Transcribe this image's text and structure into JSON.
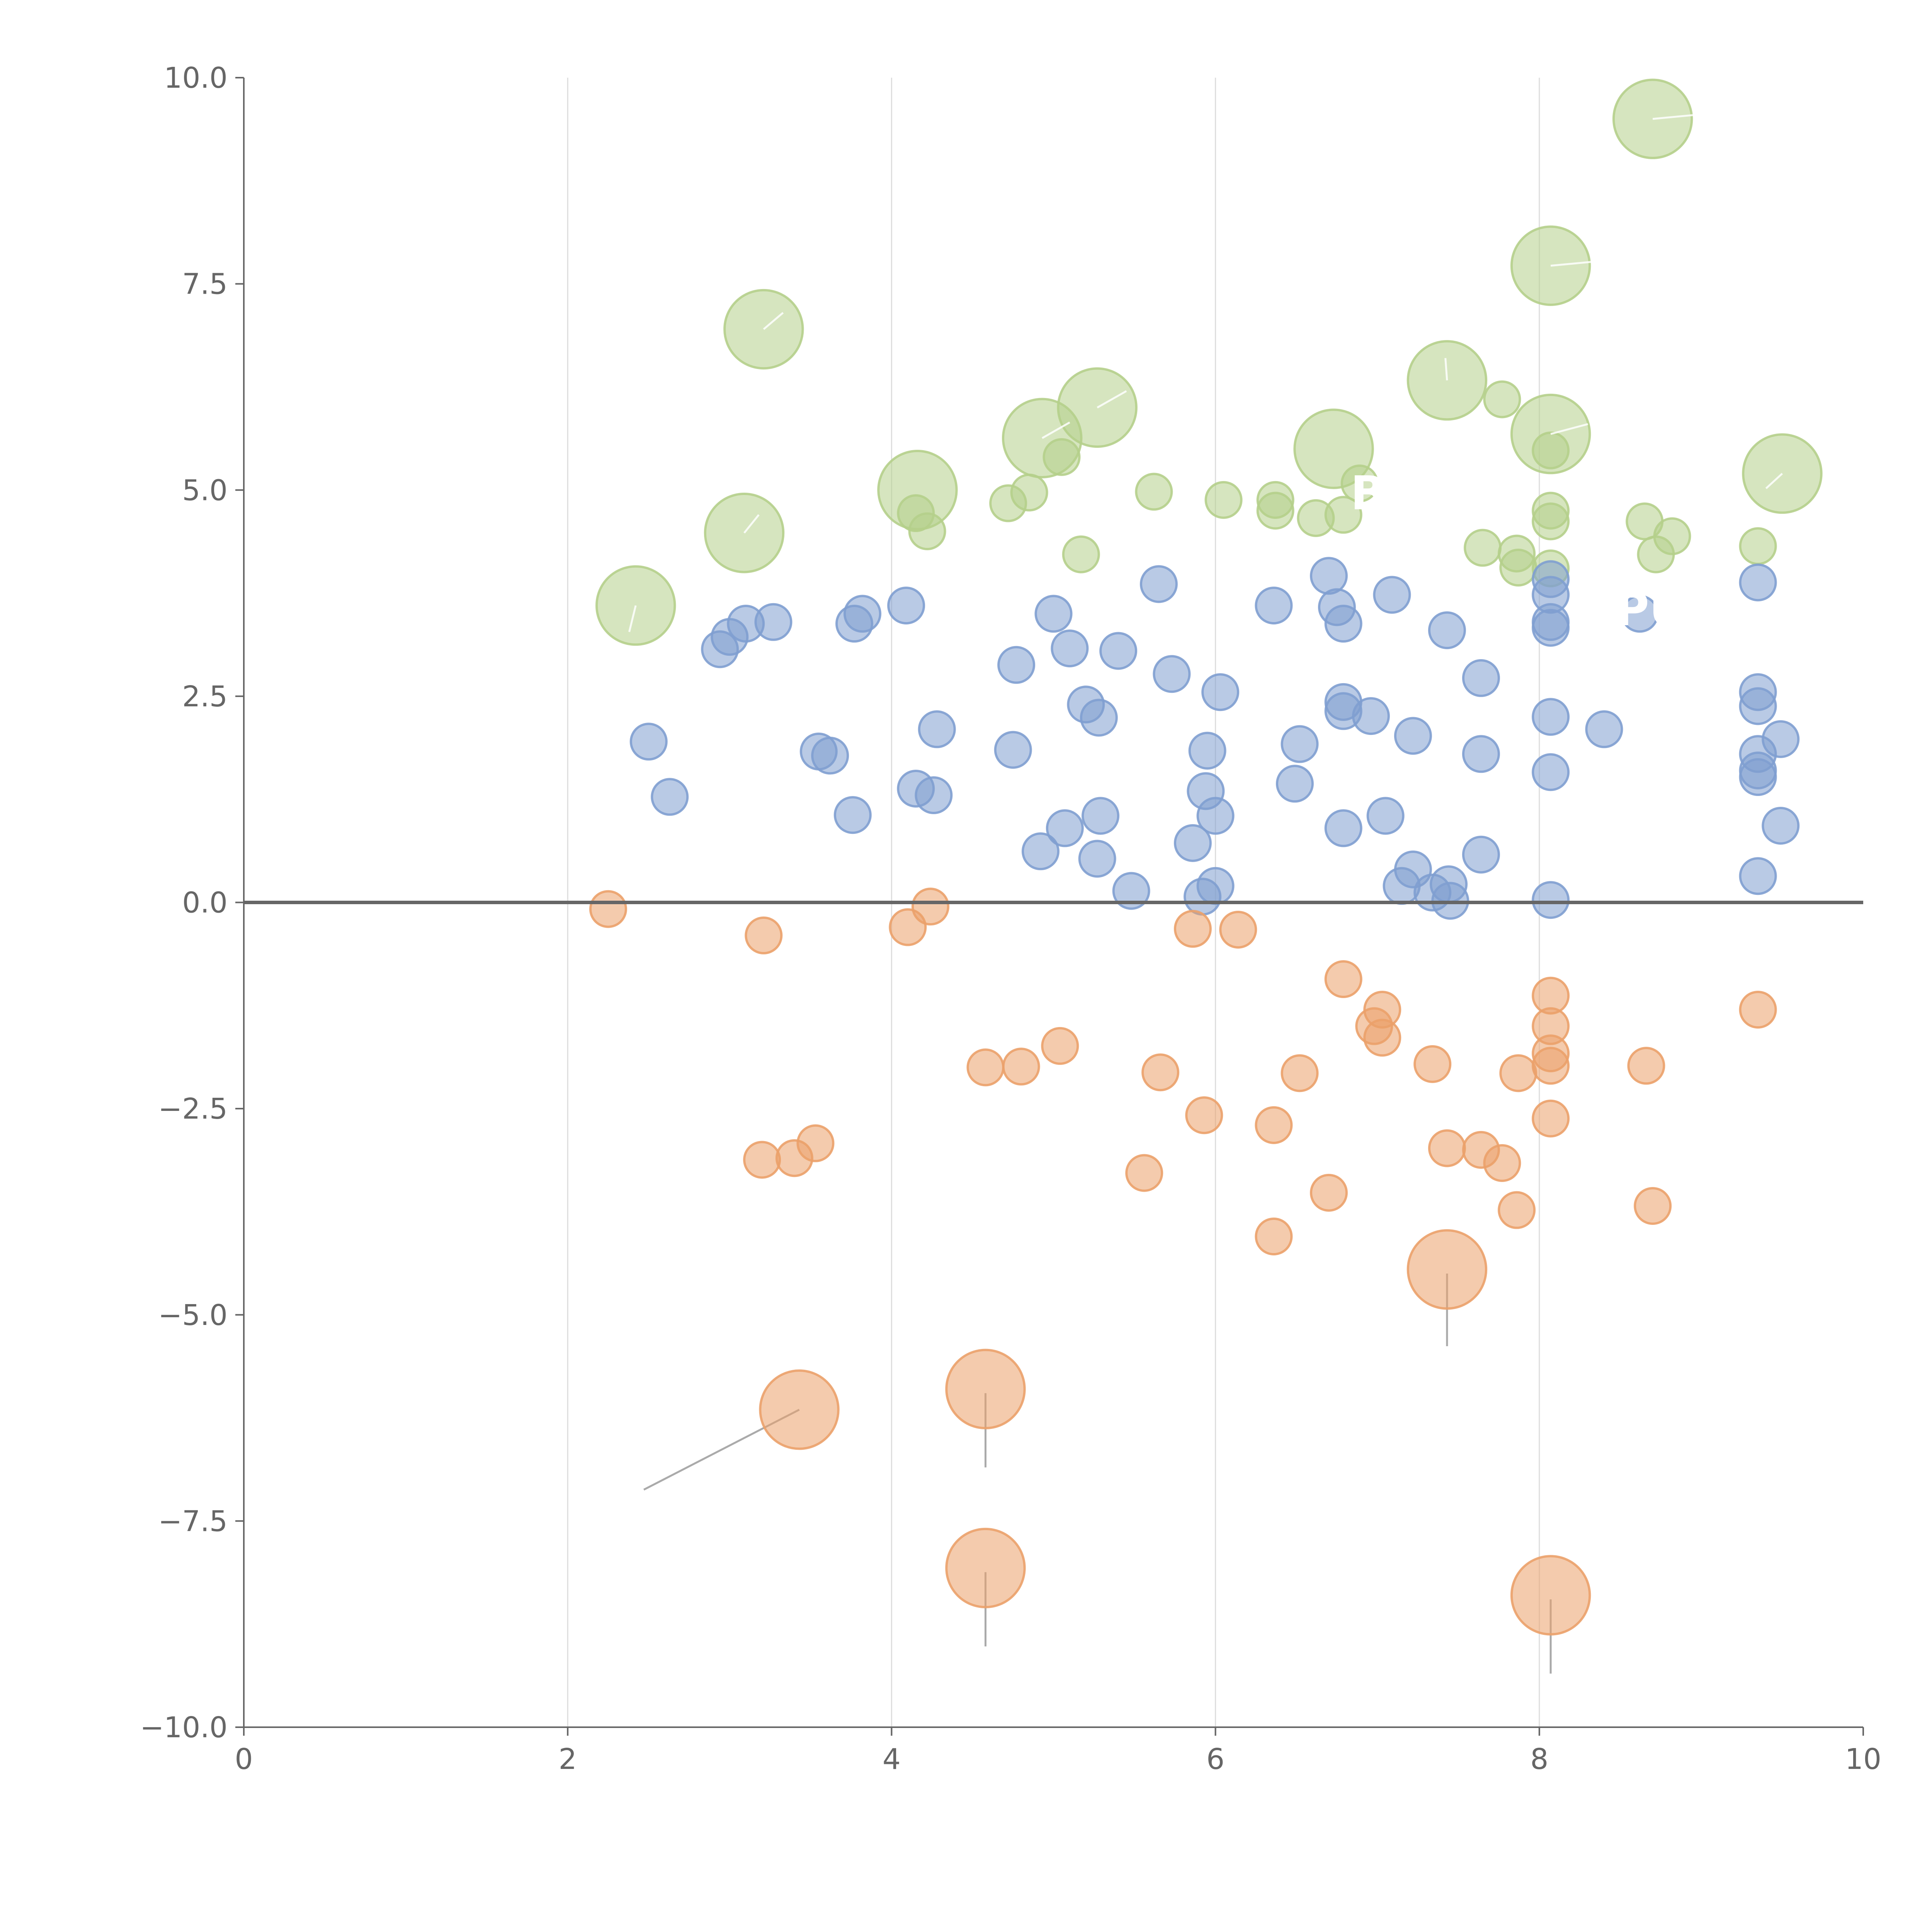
{
  "chart_data": {
    "type": "scatter",
    "title": "",
    "xlabel": "",
    "ylabel": "",
    "xlim": [
      0,
      10
    ],
    "ylim": [
      -10,
      10
    ],
    "xticks": [
      0,
      2,
      4,
      6,
      8,
      10
    ],
    "yticks": [
      -10,
      -7.5,
      -5,
      -2.5,
      0,
      2.5,
      5,
      7.5,
      10
    ],
    "xtick_labels": [
      "0",
      "2",
      "4",
      "6",
      "8",
      "10"
    ],
    "ytick_labels": [
      "−10.0",
      "−7.5",
      "−5.0",
      "−2.5",
      "0.0",
      "2.5",
      "5.0",
      "7.5",
      "10.0"
    ],
    "grid": "vertical",
    "reference_line_y": 0,
    "annotations": [
      "B",
      "PU"
    ],
    "colors": {
      "green": "#b5cf8b",
      "blue": "#7f9fd0",
      "orange": "#eba16a"
    },
    "series": [
      {
        "name": "green",
        "color": "#b5cf8b",
        "points": [
          [
            8.7,
            9.5,
            2.2
          ],
          [
            8.07,
            7.72,
            2.2
          ],
          [
            3.21,
            6.95,
            2.2
          ],
          [
            7.43,
            6.33,
            2.2
          ],
          [
            5.27,
            6.0,
            2.2
          ],
          [
            4.93,
            5.63,
            2.2
          ],
          [
            8.07,
            5.68,
            2.2
          ],
          [
            6.73,
            5.5,
            2.2
          ],
          [
            9.5,
            5.2,
            2.2
          ],
          [
            4.16,
            5.0,
            2.2
          ],
          [
            3.09,
            4.48,
            2.2
          ],
          [
            2.42,
            3.6,
            2.2
          ],
          [
            7.77,
            6.1,
            1
          ],
          [
            5.05,
            5.4,
            1
          ],
          [
            8.07,
            5.48,
            1
          ],
          [
            6.89,
            5.08,
            1
          ],
          [
            5.62,
            4.98,
            1
          ],
          [
            6.05,
            4.88,
            1
          ],
          [
            6.37,
            4.88,
            1
          ],
          [
            4.85,
            4.97,
            1
          ],
          [
            4.72,
            4.84,
            1
          ],
          [
            4.15,
            4.72,
            1
          ],
          [
            4.22,
            4.5,
            1
          ],
          [
            6.37,
            4.75,
            1
          ],
          [
            6.62,
            4.66,
            1
          ],
          [
            6.79,
            4.7,
            1
          ],
          [
            8.07,
            4.75,
            1
          ],
          [
            8.07,
            4.62,
            1
          ],
          [
            8.65,
            4.62,
            1
          ],
          [
            8.82,
            4.44,
            1
          ],
          [
            8.72,
            4.22,
            1
          ],
          [
            9.35,
            4.32,
            1
          ],
          [
            7.65,
            4.3,
            1
          ],
          [
            7.86,
            4.23,
            1
          ],
          [
            7.87,
            4.06,
            1
          ],
          [
            8.07,
            4.05,
            1
          ],
          [
            5.17,
            4.22,
            1
          ]
        ]
      },
      {
        "name": "blue",
        "color": "#7f9fd0",
        "points": [
          [
            2.94,
            3.07,
            1
          ],
          [
            3.0,
            3.22,
            1
          ],
          [
            3.1,
            3.38,
            1
          ],
          [
            3.27,
            3.4,
            1
          ],
          [
            3.77,
            3.38,
            1
          ],
          [
            3.82,
            3.5,
            1
          ],
          [
            4.09,
            3.6,
            1
          ],
          [
            2.5,
            1.95,
            1
          ],
          [
            2.63,
            1.28,
            1
          ],
          [
            3.55,
            1.83,
            1
          ],
          [
            3.62,
            1.78,
            1
          ],
          [
            3.76,
            1.06,
            1
          ],
          [
            4.15,
            1.38,
            1
          ],
          [
            4.26,
            1.3,
            1
          ],
          [
            4.28,
            2.1,
            1
          ],
          [
            4.75,
            1.85,
            1
          ],
          [
            4.77,
            2.88,
            1
          ],
          [
            5.0,
            3.5,
            1
          ],
          [
            5.1,
            3.08,
            1
          ],
          [
            5.4,
            3.05,
            1
          ],
          [
            5.65,
            3.86,
            1
          ],
          [
            5.2,
            2.4,
            1
          ],
          [
            5.28,
            2.24,
            1
          ],
          [
            5.73,
            2.77,
            1
          ],
          [
            6.03,
            2.55,
            1
          ],
          [
            5.95,
            1.84,
            1
          ],
          [
            5.94,
            1.35,
            1
          ],
          [
            6.0,
            1.05,
            1
          ],
          [
            5.07,
            0.9,
            1
          ],
          [
            4.92,
            0.62,
            1
          ],
          [
            5.29,
            1.05,
            1
          ],
          [
            5.27,
            0.53,
            1
          ],
          [
            5.48,
            0.14,
            1
          ],
          [
            5.86,
            0.72,
            1
          ],
          [
            5.92,
            0.07,
            1
          ],
          [
            6.0,
            0.2,
            1
          ],
          [
            6.36,
            3.6,
            1
          ],
          [
            6.7,
            3.96,
            1
          ],
          [
            6.75,
            3.58,
            1
          ],
          [
            6.79,
            3.38,
            1
          ],
          [
            7.09,
            3.73,
            1
          ],
          [
            7.43,
            3.3,
            1
          ],
          [
            6.79,
            2.43,
            1
          ],
          [
            6.79,
            2.32,
            1
          ],
          [
            6.96,
            2.26,
            1
          ],
          [
            6.52,
            1.92,
            1
          ],
          [
            6.49,
            1.44,
            1
          ],
          [
            6.79,
            0.9,
            1
          ],
          [
            7.05,
            1.05,
            1
          ],
          [
            7.22,
            2.02,
            1
          ],
          [
            7.15,
            0.2,
            1
          ],
          [
            7.22,
            0.4,
            1
          ],
          [
            7.34,
            0.12,
            1
          ],
          [
            7.44,
            0.22,
            1
          ],
          [
            7.45,
            0.02,
            1
          ],
          [
            7.64,
            2.72,
            1
          ],
          [
            7.64,
            1.8,
            1
          ],
          [
            7.64,
            0.58,
            1
          ],
          [
            8.07,
            3.92,
            1
          ],
          [
            8.07,
            3.73,
            1
          ],
          [
            8.07,
            3.4,
            1
          ],
          [
            8.07,
            3.33,
            1
          ],
          [
            8.07,
            2.25,
            1
          ],
          [
            8.07,
            1.58,
            1
          ],
          [
            8.07,
            0.03,
            1
          ],
          [
            8.4,
            2.1,
            1
          ],
          [
            8.62,
            3.5,
            1
          ],
          [
            9.35,
            3.88,
            1
          ],
          [
            9.35,
            2.55,
            1
          ],
          [
            9.35,
            2.38,
            1
          ],
          [
            9.35,
            1.8,
            1
          ],
          [
            9.35,
            1.6,
            1
          ],
          [
            9.35,
            1.52,
            1
          ],
          [
            9.35,
            0.32,
            1
          ],
          [
            9.49,
            1.98,
            1
          ],
          [
            9.49,
            0.93,
            1
          ]
        ]
      },
      {
        "name": "orange",
        "color": "#eba16a",
        "points": [
          [
            2.25,
            -0.08,
            1
          ],
          [
            3.21,
            -0.4,
            1
          ],
          [
            4.1,
            -0.3,
            1
          ],
          [
            4.24,
            -0.05,
            1
          ],
          [
            5.86,
            -0.32,
            1
          ],
          [
            6.14,
            -0.33,
            1
          ],
          [
            6.79,
            -0.93,
            1
          ],
          [
            7.03,
            -1.3,
            1
          ],
          [
            6.98,
            -1.5,
            1
          ],
          [
            7.03,
            -1.64,
            1
          ],
          [
            7.34,
            -1.96,
            1
          ],
          [
            8.07,
            -1.13,
            1
          ],
          [
            8.07,
            -1.5,
            1
          ],
          [
            8.07,
            -1.83,
            1
          ],
          [
            8.07,
            -1.98,
            1
          ],
          [
            7.87,
            -2.07,
            1
          ],
          [
            8.66,
            -1.98,
            1
          ],
          [
            9.35,
            -1.3,
            1
          ],
          [
            4.58,
            -2.0,
            1
          ],
          [
            4.8,
            -1.99,
            1
          ],
          [
            5.04,
            -1.74,
            1
          ],
          [
            5.66,
            -2.06,
            1
          ],
          [
            6.52,
            -2.07,
            1
          ],
          [
            5.93,
            -2.58,
            1
          ],
          [
            6.36,
            -2.7,
            1
          ],
          [
            3.2,
            -3.12,
            1
          ],
          [
            3.4,
            -3.1,
            1
          ],
          [
            3.53,
            -2.92,
            1
          ],
          [
            5.56,
            -3.28,
            1
          ],
          [
            6.7,
            -3.52,
            1
          ],
          [
            7.43,
            -2.98,
            1
          ],
          [
            7.64,
            -3.0,
            1
          ],
          [
            7.77,
            -3.16,
            1
          ],
          [
            7.86,
            -3.73,
            1
          ],
          [
            8.07,
            -2.62,
            1
          ],
          [
            8.7,
            -3.68,
            1
          ],
          [
            6.36,
            -4.05,
            1
          ],
          [
            7.43,
            -4.45,
            2.2
          ],
          [
            3.43,
            -6.15,
            2.2
          ],
          [
            4.58,
            -5.9,
            2.2
          ],
          [
            4.58,
            -8.07,
            2.2
          ],
          [
            8.07,
            -8.4,
            2.2
          ]
        ]
      }
    ]
  }
}
